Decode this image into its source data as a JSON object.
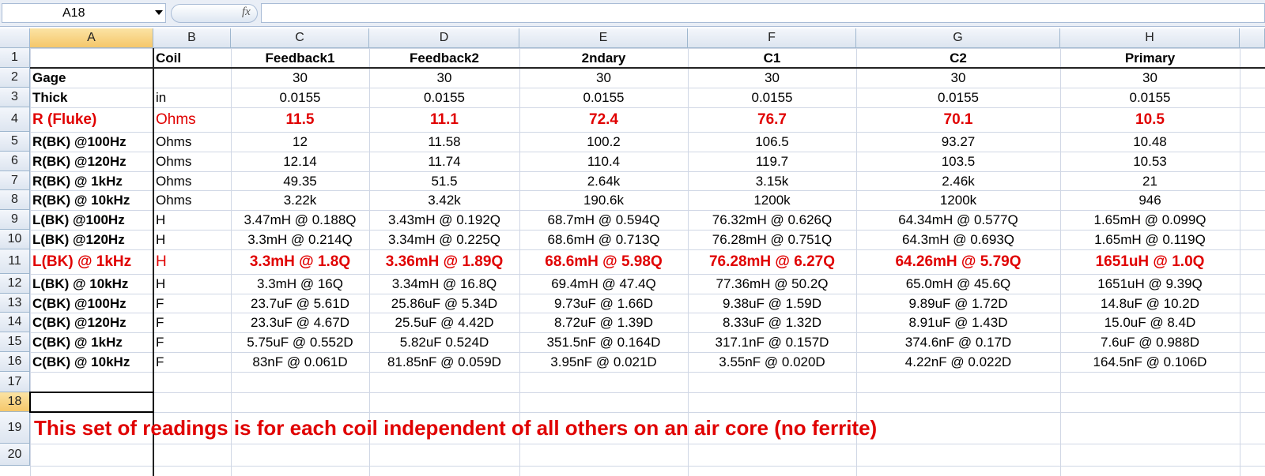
{
  "name_box": "A18",
  "formula_icon": "fx",
  "column_headers": [
    "A",
    "B",
    "C",
    "D",
    "E",
    "F",
    "G",
    "H"
  ],
  "row_headers": [
    "1",
    "2",
    "3",
    "4",
    "5",
    "6",
    "7",
    "8",
    "9",
    "10",
    "11",
    "12",
    "13",
    "14",
    "15",
    "16",
    "17",
    "18",
    "19",
    "20"
  ],
  "rows": [
    [
      null,
      "Coil",
      "Feedback1",
      "Feedback2",
      "2ndary",
      "C1",
      "C2",
      "Primary"
    ],
    [
      "Gage",
      null,
      "30",
      "30",
      "30",
      "30",
      "30",
      "30"
    ],
    [
      "Thick",
      "in",
      "0.0155",
      "0.0155",
      "0.0155",
      "0.0155",
      "0.0155",
      "0.0155"
    ],
    [
      "R (Fluke)",
      "Ohms",
      "11.5",
      "11.1",
      "72.4",
      "76.7",
      "70.1",
      "10.5"
    ],
    [
      "R(BK) @100Hz",
      "Ohms",
      "12",
      "11.58",
      "100.2",
      "106.5",
      "93.27",
      "10.48"
    ],
    [
      "R(BK) @120Hz",
      "Ohms",
      "12.14",
      "11.74",
      "110.4",
      "119.7",
      "103.5",
      "10.53"
    ],
    [
      "R(BK) @ 1kHz",
      "Ohms",
      "49.35",
      "51.5",
      "2.64k",
      "3.15k",
      "2.46k",
      "21"
    ],
    [
      "R(BK) @ 10kHz",
      "Ohms",
      "3.22k",
      "3.42k",
      "190.6k",
      "1200k",
      "1200k",
      "946"
    ],
    [
      "L(BK) @100Hz",
      "H",
      "3.47mH @ 0.188Q",
      "3.43mH @ 0.192Q",
      "68.7mH @ 0.594Q",
      "76.32mH @ 0.626Q",
      "64.34mH @ 0.577Q",
      "1.65mH @ 0.099Q"
    ],
    [
      "L(BK) @120Hz",
      "H",
      "3.3mH @ 0.214Q",
      "3.34mH @ 0.225Q",
      "68.6mH @ 0.713Q",
      "76.28mH @ 0.751Q",
      "64.3mH @ 0.693Q",
      "1.65mH @ 0.119Q"
    ],
    [
      "L(BK) @ 1kHz",
      "H",
      "3.3mH @ 1.8Q",
      "3.36mH @ 1.89Q",
      "68.6mH @ 5.98Q",
      "76.28mH @ 6.27Q",
      "64.26mH @ 5.79Q",
      "1651uH @ 1.0Q"
    ],
    [
      "L(BK) @ 10kHz",
      "H",
      "3.3mH @ 16Q",
      "3.34mH @ 16.8Q",
      "69.4mH @ 47.4Q",
      "77.36mH @ 50.2Q",
      "65.0mH @ 45.6Q",
      "1651uH @ 9.39Q"
    ],
    [
      "C(BK) @100Hz",
      "F",
      "23.7uF @ 5.61D",
      "25.86uF @ 5.34D",
      "9.73uF @ 1.66D",
      "9.38uF @ 1.59D",
      "9.89uF @ 1.72D",
      "14.8uF @ 10.2D"
    ],
    [
      "C(BK) @120Hz",
      "F",
      "23.3uF @ 4.67D",
      "25.5uF @ 4.42D",
      "8.72uF @ 1.39D",
      "8.33uF @ 1.32D",
      "8.91uF @ 1.43D",
      "15.0uF @ 8.4D"
    ],
    [
      "C(BK) @ 1kHz",
      "F",
      "5.75uF @ 0.552D",
      "5.82uF 0.524D",
      "351.5nF @ 0.164D",
      "317.1nF @ 0.157D",
      "374.6nF @ 0.17D",
      "7.6uF @ 0.988D"
    ],
    [
      "C(BK) @ 10kHz",
      "F",
      "83nF @ 0.061D",
      "81.85nF @ 0.059D",
      "3.95nF @ 0.021D",
      "3.55nF @ 0.020D",
      "4.22nF @ 0.022D",
      "164.5nF @ 0.106D"
    ]
  ],
  "note": "This set of readings is for each coil independent of all others on an air core (no ferrite)"
}
